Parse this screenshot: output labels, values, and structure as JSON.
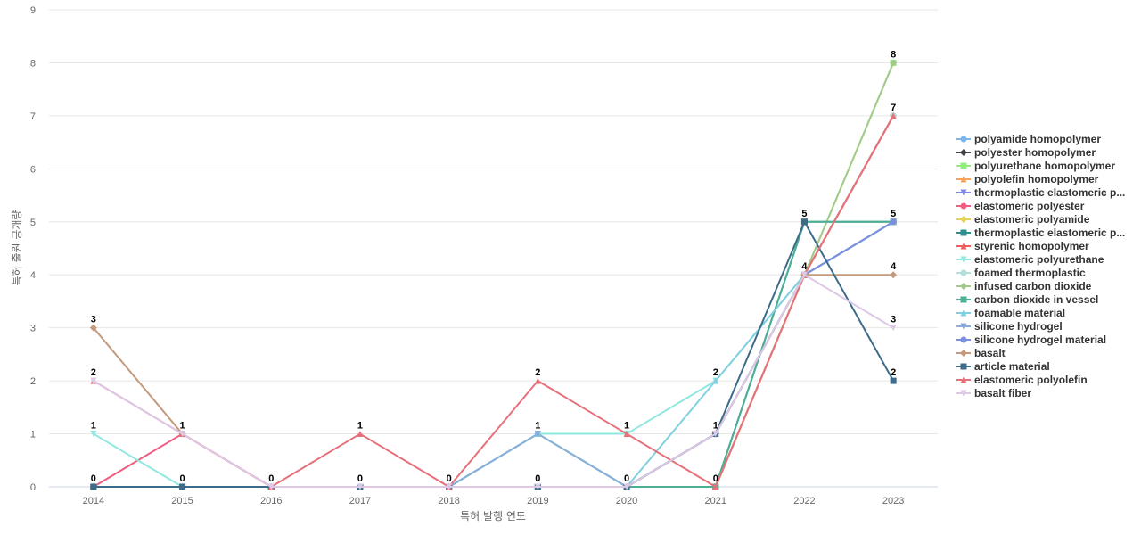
{
  "chart_data": {
    "type": "line",
    "title": "",
    "xlabel": "특허 발행 연도",
    "ylabel": "특허 출원 공개량",
    "ylim": [
      0,
      9
    ],
    "y_ticks": [
      "0",
      "1",
      "2",
      "3",
      "4",
      "5",
      "6",
      "7",
      "8",
      "9"
    ],
    "categories": [
      "2014",
      "2015",
      "2016",
      "2017",
      "2018",
      "2019",
      "2020",
      "2021",
      "2022",
      "2023"
    ],
    "grid": true,
    "legend_position": "right",
    "series": [
      {
        "name": "polyamide homopolymer",
        "color": "#7cb5ec",
        "marker": "circle",
        "values": [
          0,
          0,
          0,
          0,
          0,
          1,
          0,
          1,
          4,
          5
        ]
      },
      {
        "name": "polyester homopolymer",
        "color": "#434348",
        "marker": "diamond",
        "values": [
          0,
          0,
          0,
          0,
          0,
          0,
          0,
          1,
          4,
          7
        ]
      },
      {
        "name": "polyurethane homopolymer",
        "color": "#90ed7d",
        "marker": "square",
        "values": [
          0,
          0,
          0,
          0,
          0,
          0,
          0,
          0,
          4,
          8
        ]
      },
      {
        "name": "polyolefin homopolymer",
        "color": "#f7a35c",
        "marker": "triangle",
        "values": [
          0,
          0,
          0,
          0,
          0,
          0,
          0,
          0,
          4,
          7
        ]
      },
      {
        "name": "thermoplastic elastomeric p...",
        "color": "#8085e9",
        "marker": "triangle-down",
        "values": [
          0,
          0,
          0,
          0,
          0,
          0,
          0,
          1,
          4,
          5
        ]
      },
      {
        "name": "elastomeric polyester",
        "color": "#f15c80",
        "marker": "circle",
        "values": [
          0,
          1,
          0,
          0,
          0,
          0,
          0,
          0,
          4,
          7
        ]
      },
      {
        "name": "elastomeric polyamide",
        "color": "#e4d354",
        "marker": "diamond",
        "values": [
          0,
          0,
          0,
          0,
          0,
          0,
          0,
          0,
          4,
          7
        ]
      },
      {
        "name": "thermoplastic elastomeric p...",
        "color": "#2b908f",
        "marker": "square",
        "values": [
          0,
          0,
          0,
          0,
          0,
          0,
          0,
          0,
          5,
          5
        ]
      },
      {
        "name": "styrenic homopolymer",
        "color": "#f45b5b",
        "marker": "triangle",
        "values": [
          0,
          0,
          0,
          0,
          0,
          0,
          0,
          0,
          4,
          7
        ]
      },
      {
        "name": "elastomeric polyurethane",
        "color": "#91e8e1",
        "marker": "triangle-down",
        "values": [
          1,
          0,
          0,
          0,
          0,
          1,
          1,
          2,
          4,
          5
        ]
      },
      {
        "name": "foamed thermoplastic",
        "color": "#b2dfdb",
        "marker": "circle",
        "values": [
          0,
          0,
          0,
          0,
          0,
          0,
          0,
          0,
          4,
          7
        ]
      },
      {
        "name": "infused carbon dioxide",
        "color": "#a5c98a",
        "marker": "diamond",
        "values": [
          0,
          0,
          0,
          0,
          0,
          0,
          0,
          0,
          4,
          8
        ]
      },
      {
        "name": "carbon dioxide in vessel",
        "color": "#4caf94",
        "marker": "square",
        "values": [
          0,
          0,
          0,
          0,
          0,
          0,
          0,
          0,
          5,
          5
        ]
      },
      {
        "name": "foamable material",
        "color": "#80d0e0",
        "marker": "triangle",
        "values": [
          0,
          0,
          0,
          0,
          0,
          1,
          0,
          2,
          4,
          5
        ]
      },
      {
        "name": "silicone hydrogel",
        "color": "#8aaed6",
        "marker": "triangle-down",
        "values": [
          0,
          0,
          0,
          0,
          0,
          1,
          0,
          1,
          4,
          5
        ]
      },
      {
        "name": "silicone hydrogel material",
        "color": "#7b8fe0",
        "marker": "circle",
        "values": [
          0,
          0,
          0,
          0,
          0,
          0,
          0,
          1,
          4,
          5
        ]
      },
      {
        "name": "basalt",
        "color": "#c49a7a",
        "marker": "diamond",
        "values": [
          3,
          1,
          0,
          0,
          0,
          0,
          0,
          1,
          4,
          4
        ]
      },
      {
        "name": "article material",
        "color": "#3d6b8a",
        "marker": "square",
        "values": [
          0,
          0,
          0,
          0,
          0,
          0,
          0,
          1,
          5,
          2
        ]
      },
      {
        "name": "elastomeric polyolefin",
        "color": "#e8707a",
        "marker": "triangle",
        "values": [
          2,
          1,
          0,
          1,
          0,
          2,
          1,
          0,
          4,
          7
        ]
      },
      {
        "name": "basalt fiber",
        "color": "#ddc8e6",
        "marker": "triangle-down",
        "values": [
          2,
          1,
          0,
          0,
          0,
          0,
          0,
          1,
          4,
          3
        ]
      }
    ],
    "data_labels": [
      {
        "x": "2014",
        "y": 3,
        "text": "3"
      },
      {
        "x": "2014",
        "y": 2,
        "text": "2"
      },
      {
        "x": "2014",
        "y": 1,
        "text": "1"
      },
      {
        "x": "2014",
        "y": 0,
        "text": "0"
      },
      {
        "x": "2015",
        "y": 1,
        "text": "1"
      },
      {
        "x": "2015",
        "y": 0,
        "text": "0"
      },
      {
        "x": "2016",
        "y": 0,
        "text": "0"
      },
      {
        "x": "2017",
        "y": 1,
        "text": "1"
      },
      {
        "x": "2017",
        "y": 0,
        "text": "0"
      },
      {
        "x": "2018",
        "y": 0,
        "text": "0"
      },
      {
        "x": "2019",
        "y": 2,
        "text": "2"
      },
      {
        "x": "2019",
        "y": 1,
        "text": "1"
      },
      {
        "x": "2019",
        "y": 0,
        "text": "0"
      },
      {
        "x": "2020",
        "y": 1,
        "text": "1"
      },
      {
        "x": "2020",
        "y": 0,
        "text": "0"
      },
      {
        "x": "2021",
        "y": 2,
        "text": "2"
      },
      {
        "x": "2021",
        "y": 1,
        "text": "1"
      },
      {
        "x": "2021",
        "y": 0,
        "text": "0"
      },
      {
        "x": "2022",
        "y": 5,
        "text": "5"
      },
      {
        "x": "2022",
        "y": 4,
        "text": "4"
      },
      {
        "x": "2023",
        "y": 8,
        "text": "8"
      },
      {
        "x": "2023",
        "y": 7,
        "text": "7"
      },
      {
        "x": "2023",
        "y": 5,
        "text": "5"
      },
      {
        "x": "2023",
        "y": 4,
        "text": "4"
      },
      {
        "x": "2023",
        "y": 3,
        "text": "3"
      },
      {
        "x": "2023",
        "y": 2,
        "text": "2"
      }
    ]
  }
}
